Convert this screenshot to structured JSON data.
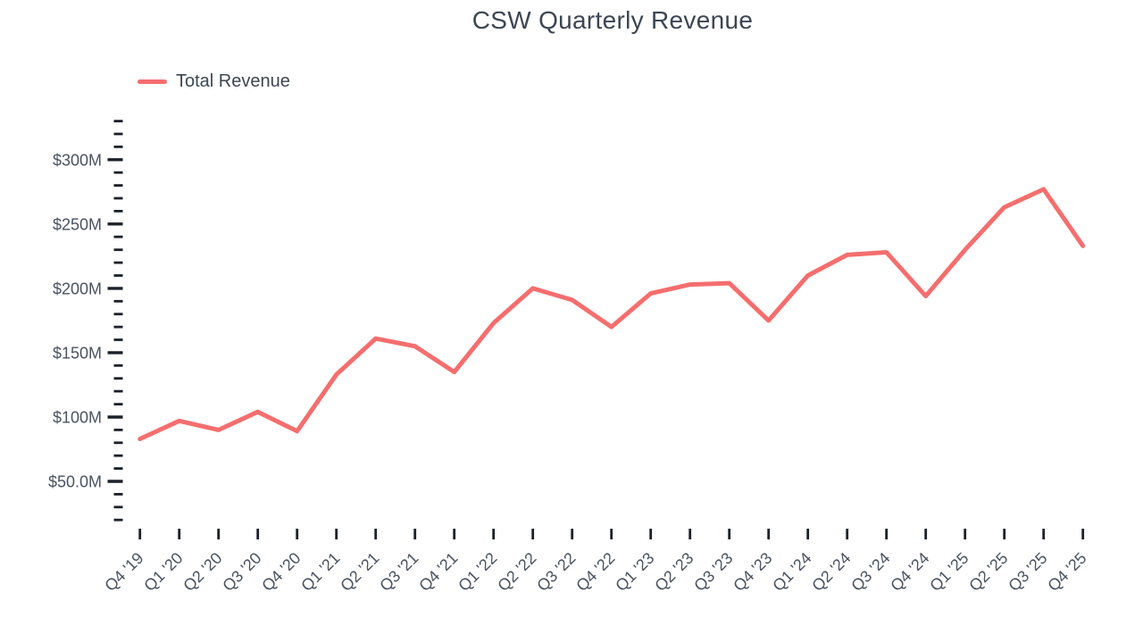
{
  "page": {
    "background": "#ffffff"
  },
  "header": {
    "title": "CSW Quarterly Revenue"
  },
  "legend": {
    "label": "Total Revenue",
    "swatch_color": "#F56E6E"
  },
  "colors": {
    "line": "#F56E6E",
    "title_text": "#3C4654",
    "axis_text": "#4A5362",
    "tick_mark": "#1B2129"
  },
  "chart_data": {
    "type": "line",
    "title": "CSW Quarterly Revenue",
    "xlabel": "",
    "ylabel": "",
    "grid": false,
    "legend_position": "top-left",
    "x_categories": [
      "Q4 '19",
      "Q1 '20",
      "Q2 '20",
      "Q3 '20",
      "Q4 '20",
      "Q1 '21",
      "Q2 '21",
      "Q3 '21",
      "Q4 '21",
      "Q1 '22",
      "Q2 '22",
      "Q3 '22",
      "Q4 '22",
      "Q1 '23",
      "Q2 '23",
      "Q3 '23",
      "Q4 '23",
      "Q1 '24",
      "Q2 '24",
      "Q3 '24",
      "Q4 '24",
      "Q1 '25",
      "Q2 '25",
      "Q3 '25",
      "Q4 '25"
    ],
    "series": [
      {
        "name": "Total Revenue",
        "color": "#F56E6E",
        "unit": "$M",
        "values": [
          83,
          97,
          90,
          104,
          89,
          133,
          161,
          155,
          135,
          173,
          200,
          191,
          170,
          196,
          203,
          204,
          175,
          210,
          226,
          228,
          194,
          230,
          263,
          277,
          233
        ]
      }
    ],
    "y_axis": {
      "min": 20,
      "max": 330,
      "minor_step": 10,
      "major_step": 50,
      "labeled_ticks": [
        {
          "value": 50,
          "label": "$50.0M"
        },
        {
          "value": 100,
          "label": "$100M"
        },
        {
          "value": 150,
          "label": "$150M"
        },
        {
          "value": 200,
          "label": "$200M"
        },
        {
          "value": 250,
          "label": "$250M"
        },
        {
          "value": 300,
          "label": "$300M"
        }
      ]
    }
  }
}
